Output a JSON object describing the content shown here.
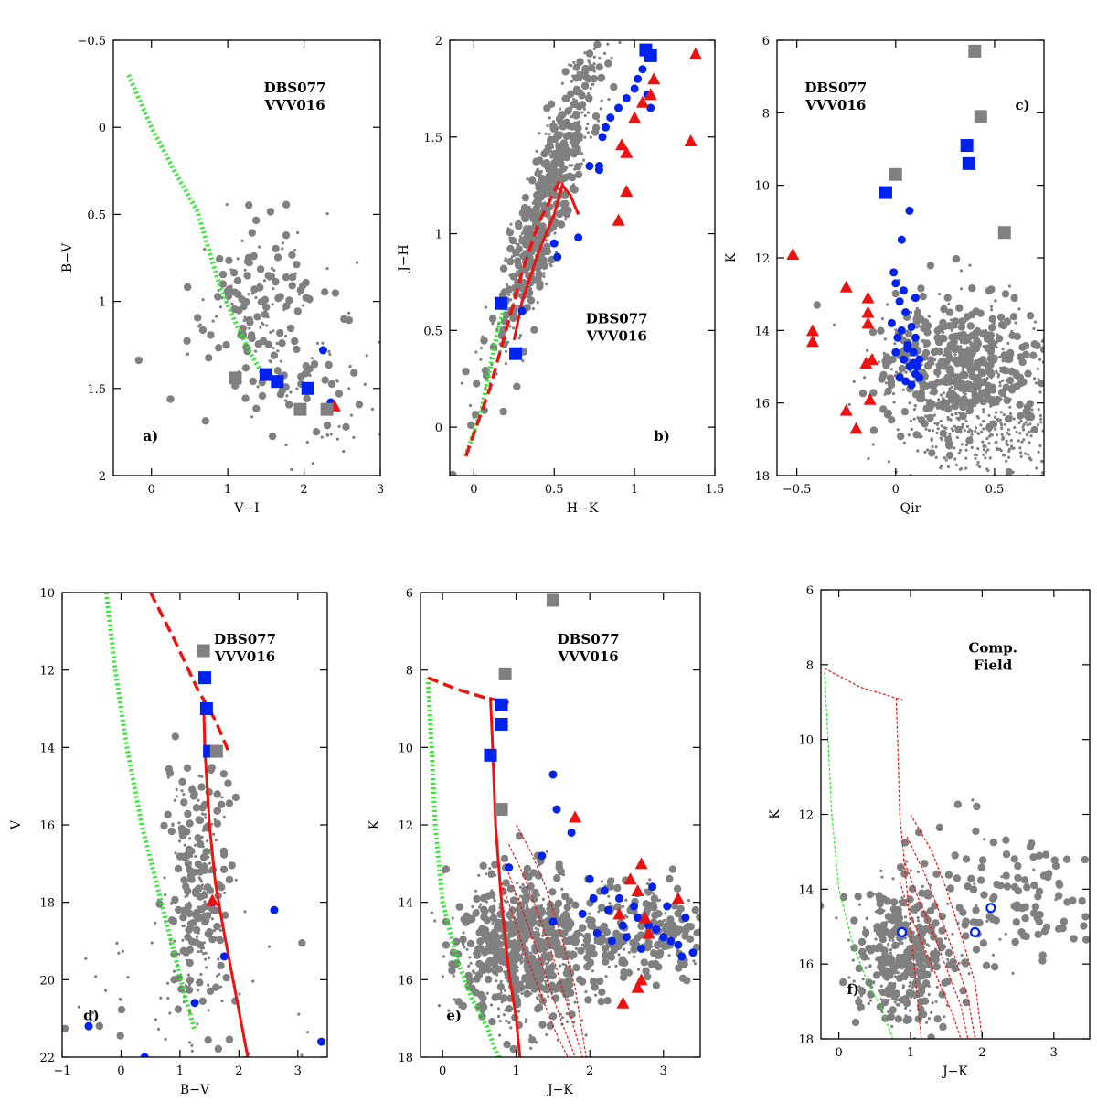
{
  "colors": {
    "field_stars": "#808080",
    "members": "#0022ee",
    "ysos": "#ee1111",
    "isochrone": "#ee1111",
    "zams": "#22ee22"
  },
  "chart_data": [
    {
      "type": "scatter",
      "panel": "a)",
      "annotation": [
        "DBS077",
        "VVV016"
      ],
      "xlabel": "V−I",
      "ylabel": "B−V",
      "xlim": [
        -0.5,
        3
      ],
      "ylim": [
        2,
        -0.5
      ],
      "xticks": [
        0,
        1,
        2,
        3
      ],
      "yticks": [
        -0.5,
        0,
        0.5,
        1,
        1.5,
        2
      ],
      "ytick_labels": [
        "−0.5",
        "0",
        "0.5",
        "1",
        "1.5",
        "2"
      ],
      "curves": [
        {
          "kind": "zams",
          "style": "dotted",
          "x": [
            -0.3,
            0.0,
            0.3,
            0.6,
            0.75,
            0.9,
            1.1,
            1.3,
            1.5
          ],
          "y": [
            -0.3,
            0.0,
            0.25,
            0.48,
            0.7,
            0.92,
            1.12,
            1.3,
            1.45
          ]
        }
      ],
      "markers": [
        {
          "kind": "member",
          "shape": "square",
          "x": [
            1.5,
            1.65,
            2.05
          ],
          "y": [
            1.42,
            1.46,
            1.5
          ]
        },
        {
          "kind": "member",
          "shape": "circle",
          "x": [
            2.25,
            2.35
          ],
          "y": [
            1.28,
            1.58
          ]
        },
        {
          "kind": "yso",
          "shape": "triangle",
          "x": [
            2.4
          ],
          "y": [
            1.6
          ]
        },
        {
          "kind": "field",
          "shape": "square",
          "x": [
            1.1,
            1.95,
            2.3
          ],
          "y": [
            1.44,
            1.62,
            1.62
          ]
        }
      ]
    },
    {
      "type": "scatter",
      "panel": "b)",
      "annotation": [
        "DBS077",
        "VVV016"
      ],
      "xlabel": "H−K",
      "ylabel": "J−H",
      "xlim": [
        -0.15,
        1.5
      ],
      "ylim": [
        -0.25,
        2
      ],
      "xticks": [
        0,
        0.5,
        1,
        1.5
      ],
      "yticks": [
        0,
        0.5,
        1,
        1.5,
        2
      ],
      "curves": [
        {
          "kind": "zams",
          "style": "dotted",
          "x": [
            -0.05,
            0.05,
            0.1,
            0.15,
            0.2
          ],
          "y": [
            -0.15,
            0.1,
            0.3,
            0.5,
            0.65
          ]
        },
        {
          "kind": "isochrone",
          "style": "dashed",
          "x": [
            -0.05,
            0.1,
            0.2,
            0.3,
            0.4,
            0.55
          ],
          "y": [
            -0.15,
            0.2,
            0.5,
            0.8,
            1.05,
            1.3
          ]
        },
        {
          "kind": "isochrone",
          "style": "solid",
          "x": [
            0.25,
            0.3,
            0.4,
            0.5,
            0.55,
            0.6,
            0.65
          ],
          "y": [
            0.45,
            0.65,
            0.9,
            1.1,
            1.25,
            1.2,
            1.1
          ]
        }
      ],
      "markers": [
        {
          "kind": "member",
          "shape": "square",
          "x": [
            0.17,
            0.26,
            1.07,
            1.1
          ],
          "y": [
            0.64,
            0.38,
            1.95,
            1.92
          ]
        },
        {
          "kind": "member",
          "shape": "circle",
          "x": [
            0.5,
            0.52,
            0.65,
            0.78,
            0.8,
            0.82,
            0.85,
            0.9,
            0.95,
            1.0,
            1.02,
            1.05,
            1.08,
            1.1,
            0.72,
            0.78,
            0.3
          ],
          "y": [
            0.95,
            0.88,
            0.98,
            1.35,
            1.5,
            1.55,
            1.6,
            1.65,
            1.7,
            1.75,
            1.8,
            1.85,
            1.72,
            1.65,
            1.35,
            1.33,
            0.6
          ]
        },
        {
          "kind": "yso",
          "shape": "triangle",
          "x": [
            0.9,
            0.95,
            0.95,
            0.92,
            1.0,
            1.05,
            1.1,
            1.12,
            1.35,
            1.38
          ],
          "y": [
            1.07,
            1.22,
            1.42,
            1.46,
            1.6,
            1.68,
            1.72,
            1.8,
            1.48,
            1.93
          ]
        }
      ]
    },
    {
      "type": "scatter",
      "panel": "c)",
      "annotation": [
        "DBS077",
        "VVV016"
      ],
      "xlabel": "Qir",
      "ylabel": "K",
      "xlim": [
        -0.6,
        0.75
      ],
      "ylim": [
        18,
        6
      ],
      "xticks": [
        -0.5,
        0,
        0.5
      ],
      "xtick_labels": [
        "−0.5",
        "0",
        "0.5"
      ],
      "yticks": [
        6,
        8,
        10,
        12,
        14,
        16,
        18
      ],
      "markers": [
        {
          "kind": "member",
          "shape": "square",
          "x": [
            -0.05,
            0.36,
            0.37
          ],
          "y": [
            10.2,
            8.9,
            9.4
          ]
        },
        {
          "kind": "member",
          "shape": "circle",
          "x": [
            0.0,
            0.02,
            0.05,
            0.08,
            0.1,
            0.03,
            0.06,
            0.09,
            0.12,
            0.0,
            0.04,
            0.07,
            0.1,
            0.02,
            0.05,
            0.08,
            0.11,
            -0.02,
            0.01,
            0.06,
            0.09,
            0.12,
            0.03,
            0.07,
            -0.01,
            0.04,
            0.1
          ],
          "y": [
            12.7,
            13.2,
            13.5,
            13.9,
            14.2,
            14.0,
            14.4,
            14.6,
            14.8,
            14.6,
            14.8,
            15.0,
            15.2,
            15.3,
            15.4,
            15.5,
            15.0,
            13.8,
            14.2,
            14.5,
            14.9,
            15.3,
            11.5,
            10.7,
            12.4,
            12.9,
            13.1
          ]
        },
        {
          "kind": "yso",
          "shape": "triangle",
          "x": [
            -0.52,
            -0.42,
            -0.42,
            -0.25,
            -0.25,
            -0.14,
            -0.14,
            -0.14,
            -0.12,
            -0.15,
            -0.13,
            -0.2
          ],
          "y": [
            11.9,
            14.0,
            14.3,
            12.8,
            16.2,
            13.1,
            13.5,
            13.8,
            14.8,
            14.9,
            15.9,
            16.7
          ]
        },
        {
          "kind": "field",
          "shape": "square",
          "x": [
            0.4,
            0.43,
            0.0,
            0.55
          ],
          "y": [
            6.3,
            8.1,
            9.7,
            11.3
          ]
        }
      ]
    },
    {
      "type": "scatter",
      "panel": "d)",
      "annotation": [
        "DBS077",
        "VVV016"
      ],
      "xlabel": "B−V",
      "ylabel": "V",
      "xlim": [
        -1,
        3.5
      ],
      "ylim": [
        22,
        10
      ],
      "xticks": [
        -1,
        0,
        1,
        2,
        3
      ],
      "xtick_labels": [
        "−1",
        "0",
        "1",
        "2",
        "3"
      ],
      "yticks": [
        10,
        12,
        14,
        16,
        18,
        20,
        22
      ],
      "curves": [
        {
          "kind": "zams",
          "style": "dotted",
          "x": [
            -0.25,
            -0.1,
            0.1,
            0.35,
            0.6,
            0.85,
            1.1,
            1.25
          ],
          "y": [
            10,
            12,
            14,
            16,
            17.5,
            19,
            20.5,
            21.3
          ]
        },
        {
          "kind": "isochrone",
          "style": "dashed",
          "x": [
            0.5,
            0.9,
            1.3,
            1.6,
            1.85
          ],
          "y": [
            10,
            11.2,
            12.5,
            13.3,
            14.2
          ]
        },
        {
          "kind": "isochrone",
          "style": "solid",
          "x": [
            1.4,
            1.42,
            1.5,
            1.6,
            1.75,
            1.9,
            2.05,
            2.15
          ],
          "y": [
            12.8,
            14,
            16,
            17.5,
            18.8,
            20,
            21.2,
            22
          ]
        }
      ],
      "markers": [
        {
          "kind": "member",
          "shape": "square",
          "x": [
            1.42,
            1.45,
            1.5
          ],
          "y": [
            12.2,
            13.0,
            14.1
          ]
        },
        {
          "kind": "member",
          "shape": "circle",
          "x": [
            1.55,
            1.75,
            2.6,
            1.25,
            -0.55,
            0.4,
            3.4
          ],
          "y": [
            18.0,
            19.4,
            18.2,
            20.6,
            21.2,
            22.0,
            21.6
          ]
        },
        {
          "kind": "yso",
          "shape": "triangle",
          "x": [
            1.55
          ],
          "y": [
            17.95
          ]
        },
        {
          "kind": "field",
          "shape": "square",
          "x": [
            1.4,
            1.62
          ],
          "y": [
            11.5,
            14.1
          ]
        }
      ]
    },
    {
      "type": "scatter",
      "panel": "e)",
      "annotation": [
        "DBS077",
        "VVV016"
      ],
      "xlabel": "J−K",
      "ylabel": "K",
      "xlim": [
        -0.3,
        3.5
      ],
      "ylim": [
        18,
        6
      ],
      "xticks": [
        0,
        1,
        2,
        3
      ],
      "yticks": [
        6,
        8,
        10,
        12,
        14,
        16,
        18
      ],
      "curves": [
        {
          "kind": "zams",
          "style": "dotted",
          "x": [
            -0.2,
            -0.15,
            -0.1,
            0.0,
            0.2,
            0.4,
            0.6,
            0.75
          ],
          "y": [
            8.2,
            10,
            12,
            14,
            15.5,
            16.5,
            17.2,
            18
          ]
        },
        {
          "kind": "isochrone",
          "style": "dashed",
          "x": [
            -0.2,
            0.2,
            0.55,
            0.9
          ],
          "y": [
            8.2,
            8.5,
            8.7,
            8.85
          ]
        },
        {
          "kind": "isochrone",
          "style": "solid",
          "x": [
            0.65,
            0.68,
            0.72,
            0.8,
            0.9,
            1.0,
            1.05
          ],
          "y": [
            8.7,
            10,
            12,
            14,
            15.8,
            17,
            18
          ]
        },
        {
          "kind": "pms",
          "style": "thin",
          "x": [
            1.0,
            1.2,
            1.4,
            1.6,
            1.8,
            1.95
          ],
          "y": [
            12.0,
            12.7,
            13.6,
            14.8,
            16.2,
            18
          ]
        },
        {
          "kind": "pms",
          "style": "thin",
          "x": [
            0.9,
            1.1,
            1.3,
            1.5,
            1.7,
            1.9
          ],
          "y": [
            12.5,
            13.3,
            14.3,
            15.4,
            16.7,
            18
          ]
        },
        {
          "kind": "pms",
          "style": "thin",
          "x": [
            0.85,
            1.0,
            1.2,
            1.4,
            1.6,
            1.8
          ],
          "y": [
            13.0,
            13.8,
            14.8,
            15.9,
            17.0,
            18
          ]
        },
        {
          "kind": "pms",
          "style": "thin",
          "x": [
            0.8,
            0.95,
            1.1,
            1.3,
            1.5,
            1.7
          ],
          "y": [
            13.5,
            14.3,
            15.2,
            16.2,
            17.2,
            18
          ]
        }
      ],
      "markers": [
        {
          "kind": "member",
          "shape": "square",
          "x": [
            0.8,
            0.8,
            0.65
          ],
          "y": [
            8.9,
            9.4,
            10.2
          ]
        },
        {
          "kind": "member",
          "shape": "circle",
          "x": [
            1.5,
            1.55,
            1.75,
            0.9,
            1.35,
            1.5,
            2.0,
            2.2,
            2.4,
            2.6,
            2.8,
            3.0,
            3.2,
            3.4,
            1.9,
            2.1,
            2.3,
            2.5,
            2.7,
            2.9,
            3.1,
            3.3,
            2.05,
            2.25,
            2.45,
            2.65,
            2.85,
            3.05,
            3.25
          ],
          "y": [
            10.7,
            11.6,
            12.2,
            13.1,
            12.8,
            14.5,
            13.4,
            13.7,
            13.9,
            14.1,
            14.6,
            14.9,
            15.1,
            15.3,
            14.3,
            14.8,
            15.0,
            14.9,
            15.2,
            14.7,
            15.0,
            14.4,
            13.9,
            14.2,
            14.6,
            14.4,
            13.6,
            14.1,
            15.4
          ]
        },
        {
          "kind": "yso",
          "shape": "triangle",
          "x": [
            1.8,
            2.7,
            2.55,
            2.65,
            2.75,
            2.8,
            3.2,
            2.4,
            2.65,
            2.7,
            2.45
          ],
          "y": [
            11.8,
            13.0,
            13.4,
            13.7,
            14.4,
            14.8,
            13.9,
            14.3,
            16.2,
            16.0,
            16.6
          ]
        },
        {
          "kind": "field",
          "shape": "square",
          "x": [
            1.5,
            0.85,
            0.8
          ],
          "y": [
            6.2,
            8.1,
            11.6
          ]
        }
      ]
    },
    {
      "type": "scatter",
      "panel": "f)",
      "annotation": [
        "Comp.",
        "Field"
      ],
      "xlabel": "J−K",
      "ylabel": "K",
      "xlim": [
        -0.25,
        3.5
      ],
      "ylim": [
        18,
        6
      ],
      "xticks": [
        0,
        1,
        2,
        3
      ],
      "yticks": [
        6,
        8,
        10,
        12,
        14,
        16,
        18
      ],
      "curves": [
        {
          "kind": "zams",
          "style": "thin",
          "x": [
            -0.2,
            -0.15,
            -0.1,
            0.0,
            0.2,
            0.4,
            0.6,
            0.75
          ],
          "y": [
            8.2,
            10,
            12,
            14,
            15.5,
            16.5,
            17.2,
            18
          ]
        },
        {
          "kind": "isochrone",
          "style": "thin",
          "x": [
            -0.2,
            0.3,
            0.9
          ],
          "y": [
            8.1,
            8.6,
            8.95
          ]
        },
        {
          "kind": "isochrone",
          "style": "thin",
          "x": [
            0.8,
            0.82,
            0.85,
            0.95,
            1.05,
            1.15
          ],
          "y": [
            8.9,
            10,
            12,
            14,
            16,
            18
          ]
        },
        {
          "kind": "pms",
          "style": "thin",
          "x": [
            1.0,
            1.3,
            1.5,
            1.7,
            1.9,
            2.0
          ],
          "y": [
            12.0,
            13.0,
            14.0,
            15.2,
            16.5,
            18
          ]
        },
        {
          "kind": "pms",
          "style": "thin",
          "x": [
            0.95,
            1.2,
            1.4,
            1.6,
            1.8,
            1.9
          ],
          "y": [
            12.6,
            13.6,
            14.6,
            15.7,
            16.9,
            18
          ]
        },
        {
          "kind": "pms",
          "style": "thin",
          "x": [
            0.9,
            1.1,
            1.3,
            1.5,
            1.7,
            1.8
          ],
          "y": [
            13.2,
            14.2,
            15.1,
            16.1,
            17.1,
            18
          ]
        },
        {
          "kind": "pms",
          "style": "thin",
          "x": [
            0.85,
            1.0,
            1.2,
            1.4,
            1.6,
            1.7
          ],
          "y": [
            13.8,
            14.7,
            15.6,
            16.5,
            17.4,
            18
          ]
        }
      ],
      "markers": [
        {
          "kind": "member",
          "shape": "open-circle",
          "x": [
            0.88,
            1.9,
            2.12
          ],
          "y": [
            15.15,
            15.15,
            14.5
          ]
        }
      ]
    }
  ]
}
